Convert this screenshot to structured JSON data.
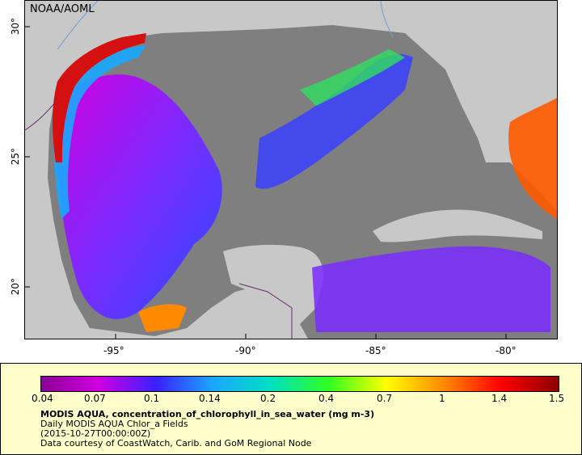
{
  "map": {
    "credit": "NOAA/AOML",
    "lon_ticks": [
      "-95°",
      "-90°",
      "-85°",
      "-80°"
    ],
    "lat_ticks": [
      "30°",
      "25°",
      "20°"
    ],
    "colors": {
      "land": "#c8c8c8",
      "no_data_ocean": "#7f7f7f",
      "rivers": "#6aa0d6",
      "borders": "#6a2a6a"
    }
  },
  "legend": {
    "scale_labels": [
      "0.04",
      "0.07",
      "0.1",
      "0.14",
      "0.2",
      "0.4",
      "0.7",
      "1",
      "1.4",
      "1.5"
    ],
    "title": "MODIS AQUA, concentration_of_chlorophyll_in_sea_water (mg m-3)",
    "line2": "Daily MODIS AQUA Chlor_a Fields",
    "line3": "(2015-10-27T00:00:00Z)",
    "line4": "Data courtesy of CoastWatch, Carib. and GoM Regional Node",
    "colormap": [
      "#8b0096",
      "#d000e0",
      "#3a20ff",
      "#1aa8ff",
      "#00e0c0",
      "#30ff20",
      "#ffff00",
      "#ff8a00",
      "#ff0000",
      "#8b0000"
    ]
  }
}
